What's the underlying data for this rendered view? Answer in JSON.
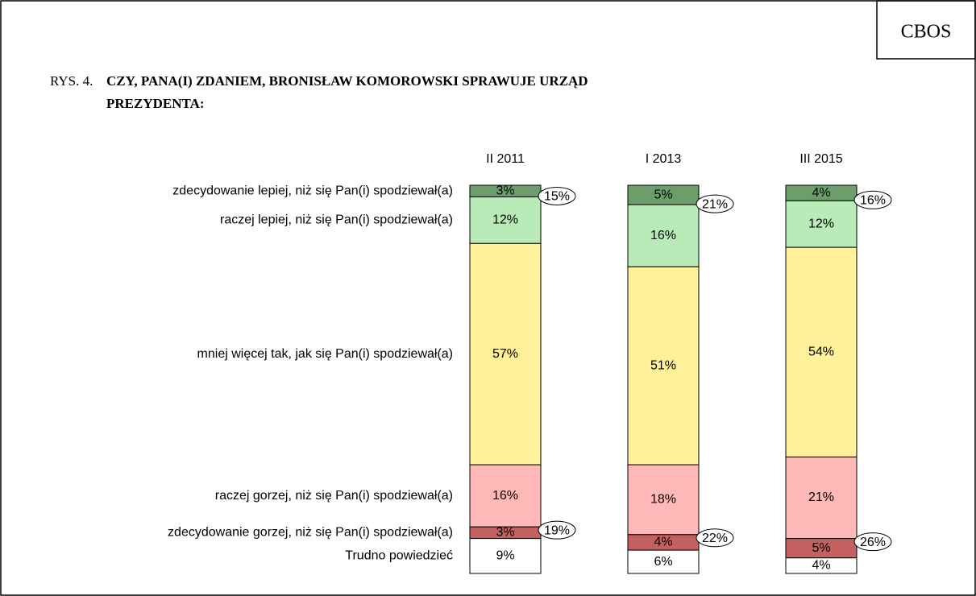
{
  "chart_data": {
    "type": "stacked-bar",
    "label": "CBOS",
    "figure_number": "RYS. 4.",
    "title": [
      "CZY, PANA(I) ZDANIEM, BRONISŁAW KOMOROWSKI SPRAWUJE URZĄD",
      "PREZYDENTA:"
    ],
    "categories": [
      "II 2011",
      "I 2013",
      "III 2015"
    ],
    "series": [
      {
        "name": "zdecydowanie lepiej, niż się Pan(i) spodziewał(a)",
        "color": "#6b9e6b",
        "values": [
          3,
          5,
          4
        ],
        "value_labels": [
          "3%",
          "5%",
          "4%"
        ]
      },
      {
        "name": "raczej lepiej, niż się Pan(i) spodziewał(a)",
        "color": "#b9ebb9",
        "values": [
          12,
          16,
          12
        ],
        "value_labels": [
          "12%",
          "16%",
          "12%"
        ]
      },
      {
        "name": "mniej więcej tak, jak się Pan(i) spodziewał(a)",
        "color": "#fff099",
        "values": [
          57,
          51,
          54
        ],
        "value_labels": [
          "57%",
          "51%",
          "54%"
        ]
      },
      {
        "name": "raczej gorzej, niż się Pan(i) spodziewał(a)",
        "color": "#ffb9b9",
        "values": [
          16,
          18,
          21
        ],
        "value_labels": [
          "16%",
          "18%",
          "21%"
        ]
      },
      {
        "name": "zdecydowanie gorzej, niż się Pan(i) spodziewał(a)",
        "color": "#c46060",
        "values": [
          3,
          4,
          5
        ],
        "value_labels": [
          "3%",
          "4%",
          "5%"
        ]
      },
      {
        "name": "Trudno powiedzieć",
        "color": "#ffffff",
        "values": [
          9,
          6,
          4
        ],
        "value_labels": [
          "9%",
          "6%",
          "4%"
        ]
      }
    ],
    "better_totals": {
      "values": [
        15,
        21,
        16
      ],
      "value_labels": [
        "15%",
        "21%",
        "16%"
      ]
    },
    "worse_totals": {
      "values": [
        19,
        22,
        26
      ],
      "value_labels": [
        "19%",
        "22%",
        "26%"
      ]
    }
  }
}
